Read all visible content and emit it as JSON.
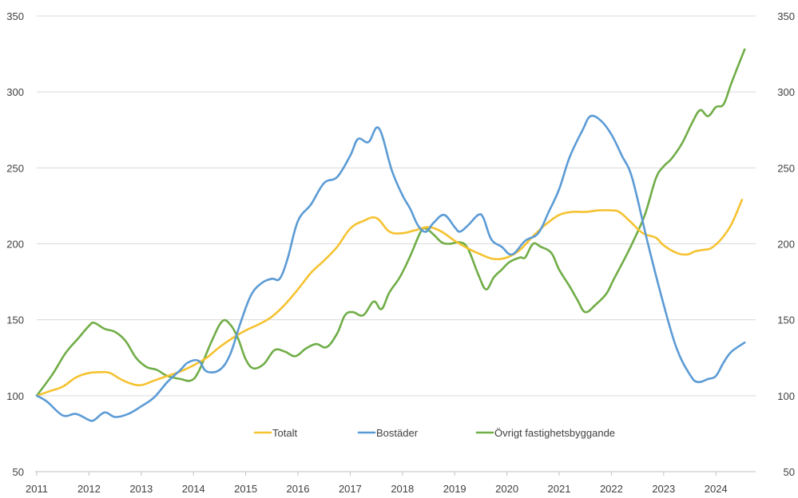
{
  "chart_data": {
    "type": "line",
    "title": "",
    "xlabel": "",
    "ylabel": "",
    "xlim": [
      2011,
      2024.55
    ],
    "ylim": [
      50,
      350
    ],
    "y_ticks": [
      50,
      100,
      150,
      200,
      250,
      300,
      350
    ],
    "x_ticks": [
      2011,
      2012,
      2013,
      2014,
      2015,
      2016,
      2017,
      2018,
      2019,
      2020,
      2021,
      2022,
      2023,
      2024
    ],
    "secondary_y_axis": true,
    "grid": "horizontal",
    "legend_position": "bottom-center",
    "colors": {
      "Totalt": "#F5C230",
      "Bostäder": "#5B9BD5",
      "Övrigt fastighetsbyggande": "#70AD47"
    },
    "series": [
      {
        "name": "Totalt",
        "color": "#F5C230",
        "points": [
          [
            2011.0,
            100
          ],
          [
            2011.25,
            103
          ],
          [
            2011.5,
            106
          ],
          [
            2011.75,
            112
          ],
          [
            2012.0,
            115
          ],
          [
            2012.25,
            115.5
          ],
          [
            2012.4,
            115
          ],
          [
            2012.6,
            111
          ],
          [
            2012.8,
            108
          ],
          [
            2013.0,
            107
          ],
          [
            2013.25,
            110
          ],
          [
            2013.5,
            113
          ],
          [
            2013.75,
            116
          ],
          [
            2014.0,
            120
          ],
          [
            2014.25,
            125
          ],
          [
            2014.5,
            132
          ],
          [
            2014.75,
            138
          ],
          [
            2015.0,
            143
          ],
          [
            2015.25,
            147
          ],
          [
            2015.5,
            152
          ],
          [
            2015.75,
            160
          ],
          [
            2016.0,
            170
          ],
          [
            2016.25,
            181
          ],
          [
            2016.5,
            189
          ],
          [
            2016.75,
            198
          ],
          [
            2017.0,
            210
          ],
          [
            2017.25,
            215
          ],
          [
            2017.5,
            217
          ],
          [
            2017.75,
            208
          ],
          [
            2018.0,
            207
          ],
          [
            2018.25,
            209
          ],
          [
            2018.5,
            211
          ],
          [
            2018.75,
            208
          ],
          [
            2019.0,
            202
          ],
          [
            2019.25,
            197
          ],
          [
            2019.5,
            193
          ],
          [
            2019.75,
            190
          ],
          [
            2020.0,
            191
          ],
          [
            2020.25,
            196
          ],
          [
            2020.5,
            205
          ],
          [
            2020.75,
            213
          ],
          [
            2021.0,
            219
          ],
          [
            2021.25,
            221
          ],
          [
            2021.5,
            221
          ],
          [
            2021.75,
            222
          ],
          [
            2022.0,
            222
          ],
          [
            2022.15,
            221
          ],
          [
            2022.35,
            215
          ],
          [
            2022.6,
            207
          ],
          [
            2022.85,
            204
          ],
          [
            2023.0,
            199
          ],
          [
            2023.25,
            194
          ],
          [
            2023.45,
            193
          ],
          [
            2023.6,
            195
          ],
          [
            2023.75,
            196
          ],
          [
            2023.9,
            197
          ],
          [
            2024.1,
            203
          ],
          [
            2024.3,
            213
          ],
          [
            2024.5,
            229
          ]
        ]
      },
      {
        "name": "Bostäder",
        "color": "#5B9BD5",
        "points": [
          [
            2011.0,
            100
          ],
          [
            2011.2,
            96
          ],
          [
            2011.5,
            87
          ],
          [
            2011.75,
            88
          ],
          [
            2012.0,
            84
          ],
          [
            2012.1,
            84
          ],
          [
            2012.3,
            89
          ],
          [
            2012.5,
            86
          ],
          [
            2012.75,
            88
          ],
          [
            2013.0,
            93
          ],
          [
            2013.25,
            99
          ],
          [
            2013.5,
            109
          ],
          [
            2013.75,
            117
          ],
          [
            2013.9,
            122
          ],
          [
            2014.1,
            123
          ],
          [
            2014.25,
            116
          ],
          [
            2014.5,
            117
          ],
          [
            2014.7,
            127
          ],
          [
            2014.9,
            148
          ],
          [
            2015.1,
            166
          ],
          [
            2015.3,
            174
          ],
          [
            2015.5,
            177
          ],
          [
            2015.65,
            177
          ],
          [
            2015.8,
            190
          ],
          [
            2016.0,
            215
          ],
          [
            2016.25,
            226
          ],
          [
            2016.5,
            240
          ],
          [
            2016.75,
            244
          ],
          [
            2017.0,
            258
          ],
          [
            2017.15,
            269
          ],
          [
            2017.35,
            267
          ],
          [
            2017.55,
            276
          ],
          [
            2017.8,
            248
          ],
          [
            2018.0,
            232
          ],
          [
            2018.15,
            223
          ],
          [
            2018.3,
            212
          ],
          [
            2018.45,
            208
          ],
          [
            2018.6,
            214
          ],
          [
            2018.8,
            219
          ],
          [
            2019.0,
            211
          ],
          [
            2019.1,
            208
          ],
          [
            2019.25,
            212
          ],
          [
            2019.45,
            219
          ],
          [
            2019.55,
            217
          ],
          [
            2019.7,
            203
          ],
          [
            2019.9,
            198
          ],
          [
            2020.1,
            193
          ],
          [
            2020.35,
            202
          ],
          [
            2020.6,
            207
          ],
          [
            2020.8,
            221
          ],
          [
            2021.0,
            236
          ],
          [
            2021.2,
            257
          ],
          [
            2021.45,
            275
          ],
          [
            2021.6,
            284
          ],
          [
            2021.8,
            281
          ],
          [
            2022.0,
            272
          ],
          [
            2022.2,
            258
          ],
          [
            2022.4,
            243
          ],
          [
            2022.7,
            200
          ],
          [
            2023.0,
            160
          ],
          [
            2023.25,
            131
          ],
          [
            2023.5,
            114
          ],
          [
            2023.65,
            109
          ],
          [
            2023.85,
            111
          ],
          [
            2024.0,
            113
          ],
          [
            2024.15,
            122
          ],
          [
            2024.3,
            129
          ],
          [
            2024.55,
            135
          ]
        ]
      },
      {
        "name": "Övrigt fastighetsbyggande",
        "color": "#70AD47",
        "points": [
          [
            2011.0,
            100
          ],
          [
            2011.3,
            114
          ],
          [
            2011.55,
            128
          ],
          [
            2011.8,
            138
          ],
          [
            2012.0,
            146
          ],
          [
            2012.1,
            148
          ],
          [
            2012.3,
            144
          ],
          [
            2012.5,
            142
          ],
          [
            2012.7,
            136
          ],
          [
            2012.9,
            125
          ],
          [
            2013.1,
            119
          ],
          [
            2013.3,
            117
          ],
          [
            2013.5,
            113
          ],
          [
            2013.75,
            111
          ],
          [
            2013.95,
            110
          ],
          [
            2014.1,
            116
          ],
          [
            2014.35,
            136
          ],
          [
            2014.55,
            149
          ],
          [
            2014.7,
            147
          ],
          [
            2014.85,
            138
          ],
          [
            2015.0,
            124
          ],
          [
            2015.15,
            118
          ],
          [
            2015.35,
            121
          ],
          [
            2015.55,
            130
          ],
          [
            2015.75,
            129
          ],
          [
            2015.95,
            126
          ],
          [
            2016.15,
            131
          ],
          [
            2016.35,
            134
          ],
          [
            2016.55,
            132
          ],
          [
            2016.75,
            141
          ],
          [
            2016.9,
            153
          ],
          [
            2017.05,
            155
          ],
          [
            2017.25,
            153
          ],
          [
            2017.45,
            162
          ],
          [
            2017.6,
            157
          ],
          [
            2017.75,
            168
          ],
          [
            2017.95,
            178
          ],
          [
            2018.15,
            192
          ],
          [
            2018.35,
            208
          ],
          [
            2018.45,
            210
          ],
          [
            2018.6,
            206
          ],
          [
            2018.75,
            201
          ],
          [
            2018.9,
            200
          ],
          [
            2019.1,
            201
          ],
          [
            2019.25,
            197
          ],
          [
            2019.45,
            180
          ],
          [
            2019.6,
            170
          ],
          [
            2019.75,
            178
          ],
          [
            2019.9,
            183
          ],
          [
            2020.05,
            188
          ],
          [
            2020.25,
            191
          ],
          [
            2020.35,
            191
          ],
          [
            2020.5,
            200
          ],
          [
            2020.65,
            198
          ],
          [
            2020.85,
            194
          ],
          [
            2021.0,
            183
          ],
          [
            2021.2,
            172
          ],
          [
            2021.35,
            163
          ],
          [
            2021.5,
            155
          ],
          [
            2021.7,
            160
          ],
          [
            2021.9,
            167
          ],
          [
            2022.05,
            177
          ],
          [
            2022.25,
            190
          ],
          [
            2022.45,
            204
          ],
          [
            2022.65,
            220
          ],
          [
            2022.85,
            243
          ],
          [
            2023.0,
            251
          ],
          [
            2023.15,
            256
          ],
          [
            2023.35,
            266
          ],
          [
            2023.55,
            280
          ],
          [
            2023.7,
            288
          ],
          [
            2023.85,
            284
          ],
          [
            2024.0,
            290
          ],
          [
            2024.15,
            292
          ],
          [
            2024.3,
            306
          ],
          [
            2024.55,
            328
          ]
        ]
      }
    ]
  }
}
